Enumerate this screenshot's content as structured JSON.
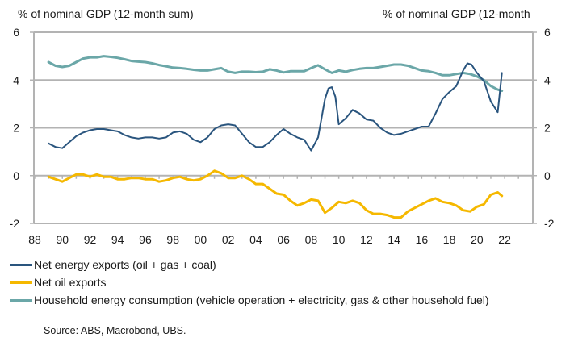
{
  "chart_data": {
    "type": "line",
    "title": "",
    "ylabel_left": "% of nominal GDP (12-month sum)",
    "ylabel_right": "% of nominal GDP (12-month",
    "xlabel": "",
    "ylim": [
      -2,
      6
    ],
    "yticks": [
      6,
      4,
      2,
      0,
      -2
    ],
    "ytick_labels": [
      "6",
      "4",
      "2",
      "0",
      "-2"
    ],
    "xlim": [
      1988,
      2024
    ],
    "xticks": [
      1988,
      1990,
      1992,
      1994,
      1996,
      1998,
      2000,
      2002,
      2004,
      2006,
      2008,
      2010,
      2012,
      2014,
      2016,
      2018,
      2020,
      2022
    ],
    "xtick_labels": [
      "88",
      "90",
      "92",
      "94",
      "96",
      "98",
      "00",
      "02",
      "04",
      "06",
      "08",
      "10",
      "12",
      "14",
      "16",
      "18",
      "20",
      "22"
    ],
    "grid": "horizontal",
    "legend_position": "bottom-left",
    "series": [
      {
        "name": "Net energy exports (oil + gas + coal)",
        "color": "#2a557e",
        "x": [
          1989.0,
          1989.5,
          1990.0,
          1990.5,
          1991.0,
          1991.5,
          1992.0,
          1992.5,
          1993.0,
          1993.5,
          1994.0,
          1994.5,
          1995.0,
          1995.5,
          1996.0,
          1996.5,
          1997.0,
          1997.5,
          1998.0,
          1998.5,
          1999.0,
          1999.5,
          2000.0,
          2000.5,
          2001.0,
          2001.5,
          2002.0,
          2002.5,
          2003.0,
          2003.5,
          2004.0,
          2004.5,
          2005.0,
          2005.5,
          2006.0,
          2006.5,
          2007.0,
          2007.5,
          2008.0,
          2008.5,
          2009.0,
          2009.25,
          2009.5,
          2009.75,
          2010.0,
          2010.5,
          2011.0,
          2011.5,
          2012.0,
          2012.5,
          2013.0,
          2013.5,
          2014.0,
          2014.5,
          2015.0,
          2015.5,
          2016.0,
          2016.5,
          2017.0,
          2017.5,
          2018.0,
          2018.5,
          2019.0,
          2019.3,
          2019.6,
          2020.0,
          2020.5,
          2021.0,
          2021.5,
          2021.8
        ],
        "values": [
          1.35,
          1.2,
          1.15,
          1.4,
          1.65,
          1.8,
          1.9,
          1.95,
          1.95,
          1.9,
          1.85,
          1.7,
          1.6,
          1.55,
          1.6,
          1.6,
          1.55,
          1.6,
          1.8,
          1.85,
          1.75,
          1.5,
          1.4,
          1.6,
          1.95,
          2.1,
          2.15,
          2.1,
          1.75,
          1.4,
          1.2,
          1.2,
          1.4,
          1.7,
          1.95,
          1.75,
          1.6,
          1.5,
          1.05,
          1.6,
          3.2,
          3.65,
          3.7,
          3.3,
          2.15,
          2.4,
          2.75,
          2.6,
          2.35,
          2.3,
          2.0,
          1.8,
          1.7,
          1.75,
          1.85,
          1.95,
          2.05,
          2.05,
          2.6,
          3.2,
          3.5,
          3.75,
          4.4,
          4.7,
          4.65,
          4.3,
          3.95,
          3.1,
          2.65,
          4.3
        ]
      },
      {
        "name": "Net oil exports",
        "color": "#f5b800",
        "x": [
          1989.0,
          1989.5,
          1990.0,
          1990.5,
          1991.0,
          1991.5,
          1992.0,
          1992.5,
          1993.0,
          1993.5,
          1994.0,
          1994.5,
          1995.0,
          1995.5,
          1996.0,
          1996.5,
          1997.0,
          1997.5,
          1998.0,
          1998.5,
          1999.0,
          1999.5,
          2000.0,
          2000.5,
          2001.0,
          2001.5,
          2002.0,
          2002.5,
          2003.0,
          2003.5,
          2004.0,
          2004.5,
          2005.0,
          2005.5,
          2006.0,
          2006.5,
          2007.0,
          2007.5,
          2008.0,
          2008.5,
          2009.0,
          2009.5,
          2010.0,
          2010.5,
          2011.0,
          2011.5,
          2012.0,
          2012.5,
          2013.0,
          2013.5,
          2014.0,
          2014.5,
          2015.0,
          2015.5,
          2016.0,
          2016.5,
          2017.0,
          2017.5,
          2018.0,
          2018.5,
          2019.0,
          2019.5,
          2020.0,
          2020.5,
          2021.0,
          2021.5,
          2021.8
        ],
        "values": [
          -0.05,
          -0.15,
          -0.25,
          -0.1,
          0.05,
          0.05,
          -0.05,
          0.05,
          -0.05,
          -0.05,
          -0.15,
          -0.15,
          -0.1,
          -0.1,
          -0.15,
          -0.15,
          -0.25,
          -0.2,
          -0.1,
          -0.05,
          -0.15,
          -0.2,
          -0.15,
          0.0,
          0.2,
          0.1,
          -0.1,
          -0.1,
          -0.0,
          -0.15,
          -0.35,
          -0.35,
          -0.55,
          -0.75,
          -0.8,
          -1.05,
          -1.25,
          -1.15,
          -1.0,
          -1.05,
          -1.55,
          -1.35,
          -1.1,
          -1.15,
          -1.05,
          -1.15,
          -1.45,
          -1.6,
          -1.6,
          -1.65,
          -1.75,
          -1.75,
          -1.5,
          -1.35,
          -1.2,
          -1.05,
          -0.95,
          -1.1,
          -1.15,
          -1.25,
          -1.45,
          -1.5,
          -1.3,
          -1.2,
          -0.8,
          -0.7,
          -0.85
        ]
      },
      {
        "name": "Household energy consumption (vehicle operation + electricity, gas & other household fuel)",
        "color": "#6ba7a8",
        "x": [
          1989.0,
          1989.5,
          1990.0,
          1990.5,
          1991.0,
          1991.5,
          1992.0,
          1992.5,
          1993.0,
          1993.5,
          1994.0,
          1994.5,
          1995.0,
          1995.5,
          1996.0,
          1996.5,
          1997.0,
          1997.5,
          1998.0,
          1998.5,
          1999.0,
          1999.5,
          2000.0,
          2000.5,
          2001.0,
          2001.5,
          2002.0,
          2002.5,
          2003.0,
          2003.5,
          2004.0,
          2004.5,
          2005.0,
          2005.5,
          2006.0,
          2006.5,
          2007.0,
          2007.5,
          2008.0,
          2008.5,
          2009.0,
          2009.5,
          2010.0,
          2010.5,
          2011.0,
          2011.5,
          2012.0,
          2012.5,
          2013.0,
          2013.5,
          2014.0,
          2014.5,
          2015.0,
          2015.5,
          2016.0,
          2016.5,
          2017.0,
          2017.5,
          2018.0,
          2018.5,
          2019.0,
          2019.5,
          2020.0,
          2020.5,
          2021.0,
          2021.5,
          2021.8
        ],
        "values": [
          4.75,
          4.6,
          4.55,
          4.6,
          4.75,
          4.9,
          4.95,
          4.95,
          5.0,
          4.97,
          4.93,
          4.87,
          4.8,
          4.77,
          4.75,
          4.7,
          4.63,
          4.58,
          4.52,
          4.5,
          4.47,
          4.43,
          4.4,
          4.4,
          4.45,
          4.5,
          4.35,
          4.3,
          4.35,
          4.35,
          4.33,
          4.35,
          4.45,
          4.4,
          4.32,
          4.37,
          4.37,
          4.37,
          4.5,
          4.62,
          4.45,
          4.3,
          4.4,
          4.35,
          4.42,
          4.47,
          4.5,
          4.5,
          4.55,
          4.6,
          4.65,
          4.65,
          4.6,
          4.5,
          4.4,
          4.37,
          4.3,
          4.2,
          4.2,
          4.25,
          4.3,
          4.25,
          4.15,
          4.0,
          3.75,
          3.6,
          3.55
        ]
      }
    ]
  },
  "source": "Source: ABS, Macrobond, UBS."
}
